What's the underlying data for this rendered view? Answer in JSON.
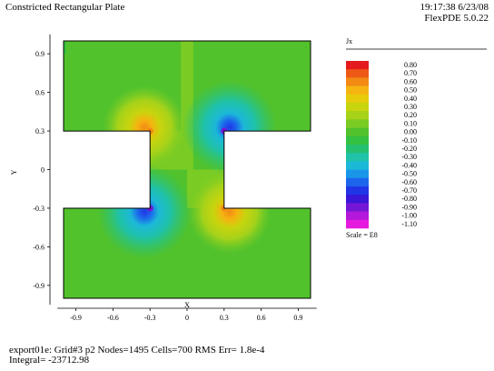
{
  "header": {
    "title": "Constricted Rectangular Plate",
    "time": "19:17:38 6/23/08",
    "software": "FlexPDE 5.0.22"
  },
  "footer": {
    "line1": "export01e:  Grid#3  p2  Nodes=1495 Cells=700 RMS Err= 1.8e-4",
    "line2": "Integral= -23712.98"
  },
  "chart_data": {
    "type": "heatmap",
    "title": "Constricted Rectangular Plate",
    "quantity": "Jx",
    "xlabel": "X",
    "ylabel": "Y",
    "xlim": [
      -1.05,
      1.05
    ],
    "ylim": [
      -1.05,
      1.05
    ],
    "xticks": [
      -0.9,
      -0.6,
      -0.3,
      0,
      0.3,
      0.6,
      0.9
    ],
    "yticks": [
      0.9,
      0.6,
      0.3,
      0,
      -0.3,
      -0.6,
      -0.9
    ],
    "xtick_labels": [
      "-0.9",
      "-0.6",
      "-0.3",
      "0",
      "0.3",
      "0.6",
      "0.9"
    ],
    "ytick_labels": [
      "0.9",
      "0.6",
      "0.3",
      "0",
      "-0.3",
      "-0.6",
      "-0.9"
    ],
    "domain": {
      "outer": [
        -1.0,
        1.0,
        -1.0,
        1.0
      ],
      "notch_left": [
        -1.0,
        -0.3,
        -0.3,
        0.3
      ],
      "notch_right": [
        0.3,
        1.0,
        -0.3,
        0.3
      ]
    },
    "scale": "Scale = E8",
    "legend": [
      {
        "label": "0.80",
        "color": "#e41a1c"
      },
      {
        "label": "0.70",
        "color": "#ee5a16"
      },
      {
        "label": "0.60",
        "color": "#f28a14"
      },
      {
        "label": "0.50",
        "color": "#f5b410"
      },
      {
        "label": "0.40",
        "color": "#e7cc0c"
      },
      {
        "label": "0.30",
        "color": "#c8d40e"
      },
      {
        "label": "0.20",
        "color": "#a6d21a"
      },
      {
        "label": "0.10",
        "color": "#7acc24"
      },
      {
        "label": "0.00",
        "color": "#52c22c"
      },
      {
        "label": "-0.10",
        "color": "#34c040"
      },
      {
        "label": "-0.20",
        "color": "#24c070"
      },
      {
        "label": "-0.30",
        "color": "#20c2a8"
      },
      {
        "label": "-0.40",
        "color": "#1cb8d8"
      },
      {
        "label": "-0.50",
        "color": "#1a96e8"
      },
      {
        "label": "-0.60",
        "color": "#1c66ec"
      },
      {
        "label": "-0.70",
        "color": "#2036e6"
      },
      {
        "label": "-0.80",
        "color": "#3a16d6"
      },
      {
        "label": "-0.90",
        "color": "#7416d6"
      },
      {
        "label": "-1.00",
        "color": "#b418da"
      },
      {
        "label": "-1.10",
        "color": "#e61ade"
      }
    ],
    "hotspots": [
      {
        "x": -0.3,
        "y": 0.3,
        "value": 0.6
      },
      {
        "x": 0.3,
        "y": -0.3,
        "value": 0.6
      },
      {
        "x": -0.3,
        "y": -0.3,
        "value": -0.9
      },
      {
        "x": 0.3,
        "y": 0.3,
        "value": -0.9
      }
    ]
  }
}
